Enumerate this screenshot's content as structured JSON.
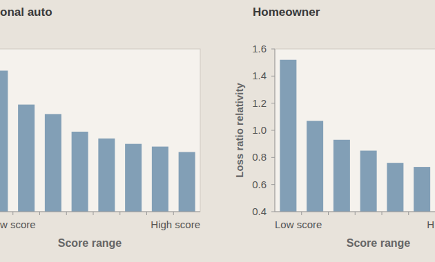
{
  "chart_data": [
    {
      "type": "bar",
      "title": "onal auto",
      "categories": [
        "w score",
        null,
        null,
        null,
        null,
        null,
        null,
        "High score"
      ],
      "values": [
        1.44,
        1.19,
        1.12,
        0.99,
        0.94,
        0.9,
        0.88,
        0.84
      ],
      "color": "#829fb6",
      "x_label": "Score range",
      "ylim": [
        0.4,
        1.6
      ],
      "tick_labels": "x"
    },
    {
      "type": "bar",
      "title": "Homeowner",
      "categories": [
        "Low score",
        null,
        null,
        null,
        null,
        "H"
      ],
      "values": [
        1.52,
        1.07,
        0.93,
        0.85,
        0.76,
        0.73
      ],
      "color": "#829fb6",
      "x_label": "Score range",
      "y_label": "Loss ratio relativity",
      "ylim": [
        0.4,
        1.6
      ],
      "yticks": [
        0.4,
        0.6,
        0.8,
        {
          "value": 1,
          "label": "1.0"
        },
        1.2,
        1.4,
        1.6
      ]
    }
  ]
}
